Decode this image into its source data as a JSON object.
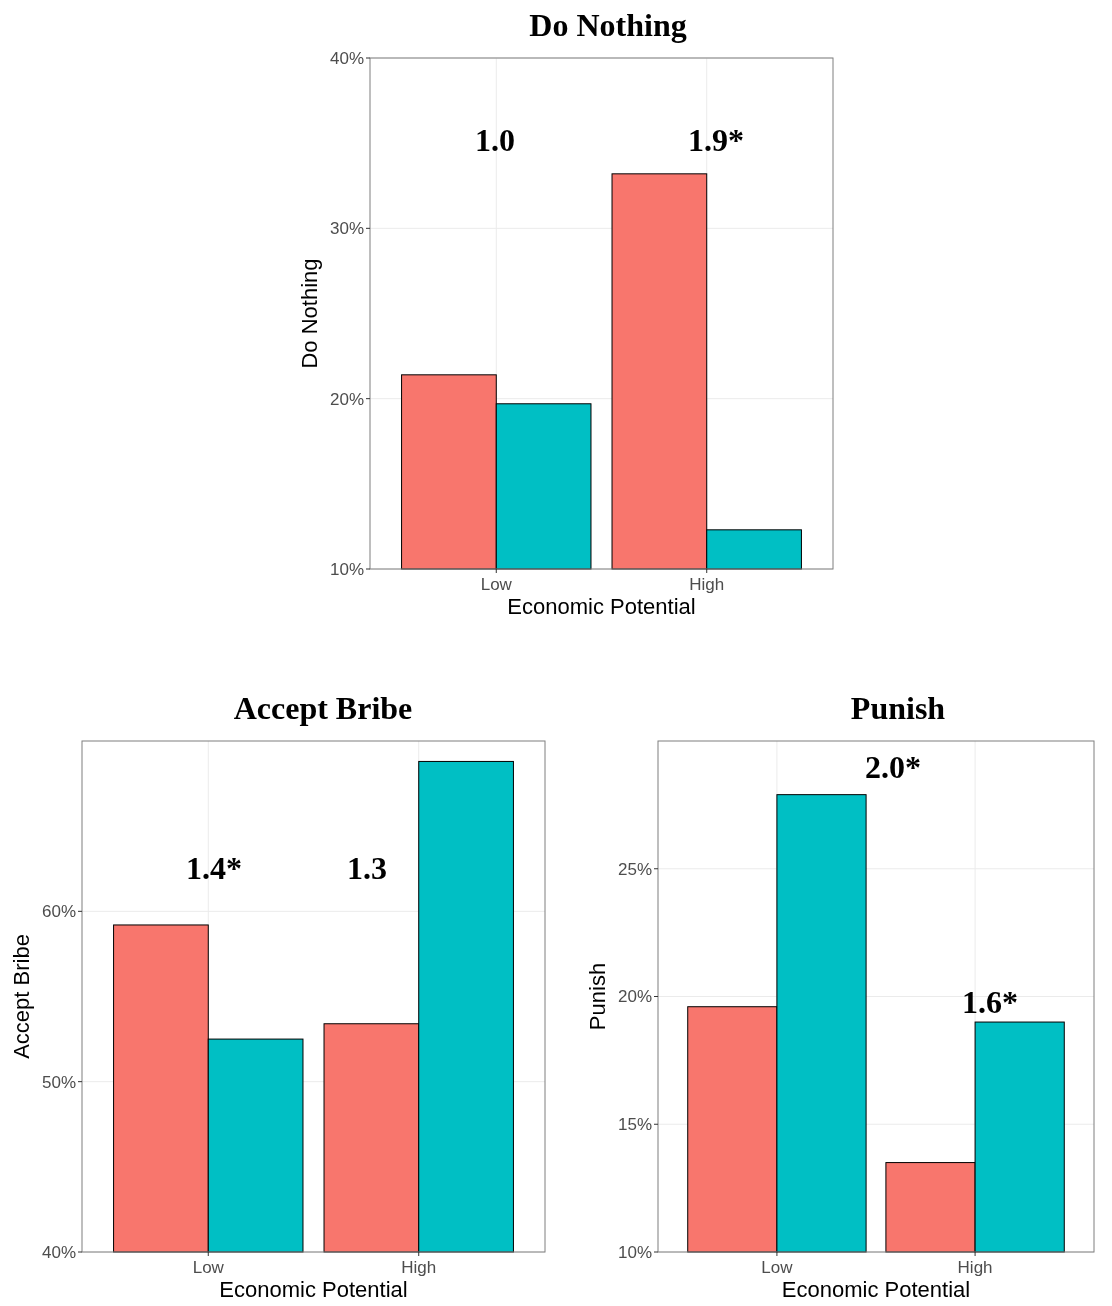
{
  "chart_data": [
    {
      "type": "bar",
      "title": "Do Nothing",
      "xlabel": "Economic Potential",
      "ylabel": "Do Nothing",
      "categories": [
        "Low",
        "High"
      ],
      "series": [
        {
          "color": "#f8766d",
          "values": [
            21.4,
            33.2
          ]
        },
        {
          "color": "#00bfc4",
          "values": [
            19.7,
            12.3
          ]
        }
      ],
      "ylim": [
        10,
        40
      ],
      "yticks": [
        {
          "value": 10,
          "label": "10%"
        },
        {
          "value": 20,
          "label": "20%"
        },
        {
          "value": 30,
          "label": "30%"
        },
        {
          "value": 40,
          "label": "40%"
        }
      ],
      "grid": true,
      "annotations": [
        "1.0",
        "1.9*"
      ]
    },
    {
      "type": "bar",
      "title": "Accept Bribe",
      "xlabel": "Economic Potential",
      "ylabel": "Accept Bribe",
      "categories": [
        "Low",
        "High"
      ],
      "series": [
        {
          "color": "#f8766d",
          "values": [
            59.2,
            53.4
          ]
        },
        {
          "color": "#00bfc4",
          "values": [
            52.5,
            68.8
          ]
        }
      ],
      "ylim": [
        40,
        70
      ],
      "yticks": [
        {
          "value": 40,
          "label": "40%"
        },
        {
          "value": 50,
          "label": "50%"
        },
        {
          "value": 60,
          "label": "60%"
        }
      ],
      "grid": true,
      "annotations": [
        "1.4*",
        "1.3"
      ]
    },
    {
      "type": "bar",
      "title": "Punish",
      "xlabel": "Economic Potential",
      "ylabel": "Punish",
      "categories": [
        "Low",
        "High"
      ],
      "series": [
        {
          "color": "#f8766d",
          "values": [
            19.6,
            13.5
          ]
        },
        {
          "color": "#00bfc4",
          "values": [
            27.9,
            19.0
          ]
        }
      ],
      "ylim": [
        10,
        30
      ],
      "yticks": [
        {
          "value": 10,
          "label": "10%"
        },
        {
          "value": 15,
          "label": "15%"
        },
        {
          "value": 20,
          "label": "20%"
        },
        {
          "value": 25,
          "label": "25%"
        }
      ],
      "grid": true,
      "annotations": [
        "2.0*",
        "1.6*"
      ]
    }
  ]
}
